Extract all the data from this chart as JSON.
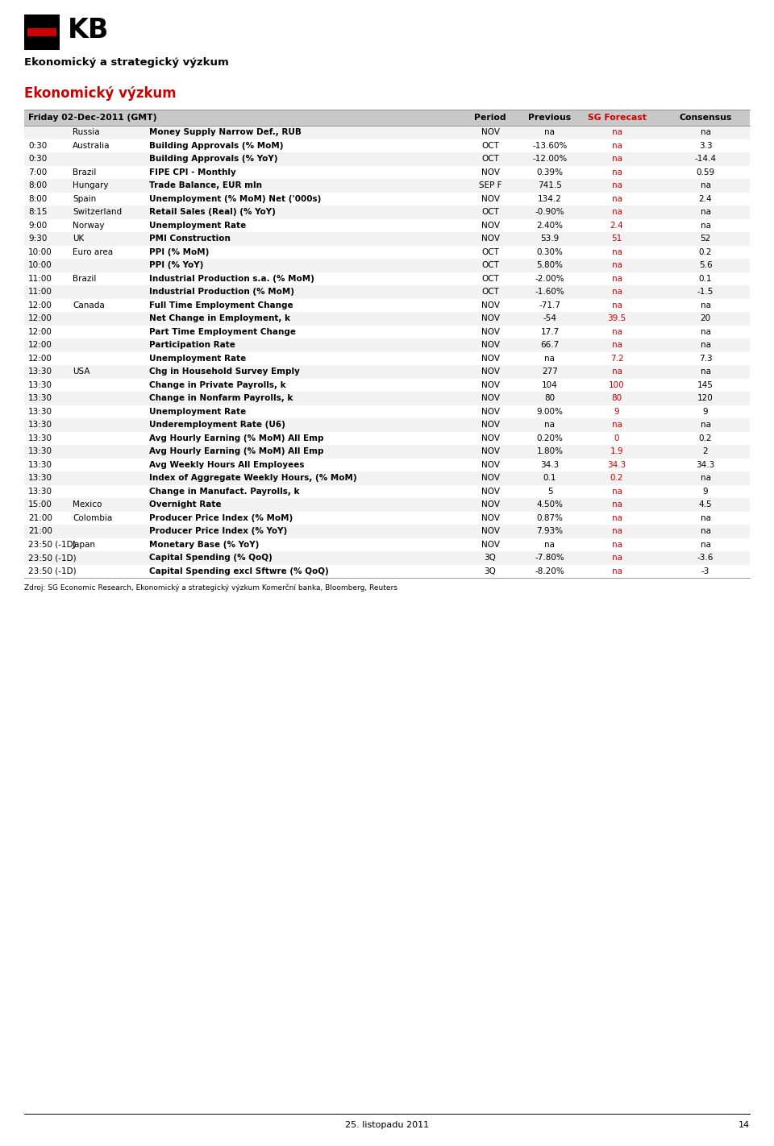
{
  "title1": "Ekonomický a strategický výzkum",
  "title2": "Ekonomický výzkum",
  "header": [
    "Friday 02-Dec-2011 (GMT)",
    "Period",
    "Previous",
    "SG Forecast",
    "Consensus"
  ],
  "footer": "Zdroj: SG Economic Research, Ekonomický a strategický výzkum Komerční banka, Bloomberg, Reuters",
  "rows": [
    [
      "",
      "Russia",
      "Money Supply Narrow Def., RUB",
      "NOV",
      "na",
      "na",
      "na"
    ],
    [
      "0:30",
      "Australia",
      "Building Approvals (% MoM)",
      "OCT",
      "-13.60%",
      "na",
      "3.3"
    ],
    [
      "0:30",
      "",
      "Building Approvals (% YoY)",
      "OCT",
      "-12.00%",
      "na",
      "-14.4"
    ],
    [
      "7:00",
      "Brazil",
      "FIPE CPI - Monthly",
      "NOV",
      "0.39%",
      "na",
      "0.59"
    ],
    [
      "8:00",
      "Hungary",
      "Trade Balance, EUR mln",
      "SEP F",
      "741.5",
      "na",
      "na"
    ],
    [
      "8:00",
      "Spain",
      "Unemployment (% MoM) Net ('000s)",
      "NOV",
      "134.2",
      "na",
      "2.4"
    ],
    [
      "8:15",
      "Switzerland",
      "Retail Sales (Real) (% YoY)",
      "OCT",
      "-0.90%",
      "na",
      "na"
    ],
    [
      "9:00",
      "Norway",
      "Unemployment Rate",
      "NOV",
      "2.40%",
      "2.4",
      "na"
    ],
    [
      "9:30",
      "UK",
      "PMI Construction",
      "NOV",
      "53.9",
      "51",
      "52"
    ],
    [
      "10:00",
      "Euro area",
      "PPI (% MoM)",
      "OCT",
      "0.30%",
      "na",
      "0.2"
    ],
    [
      "10:00",
      "",
      "PPI (% YoY)",
      "OCT",
      "5.80%",
      "na",
      "5.6"
    ],
    [
      "11:00",
      "Brazil",
      "Industrial Production s.a. (% MoM)",
      "OCT",
      "-2.00%",
      "na",
      "0.1"
    ],
    [
      "11:00",
      "",
      "Industrial Production (% MoM)",
      "OCT",
      "-1.60%",
      "na",
      "-1.5"
    ],
    [
      "12:00",
      "Canada",
      "Full Time Employment Change",
      "NOV",
      "-71.7",
      "na",
      "na"
    ],
    [
      "12:00",
      "",
      "Net Change in Employment, k",
      "NOV",
      "-54",
      "39.5",
      "20"
    ],
    [
      "12:00",
      "",
      "Part Time Employment Change",
      "NOV",
      "17.7",
      "na",
      "na"
    ],
    [
      "12:00",
      "",
      "Participation Rate",
      "NOV",
      "66.7",
      "na",
      "na"
    ],
    [
      "12:00",
      "",
      "Unemployment Rate",
      "NOV",
      "na",
      "7.2",
      "7.3"
    ],
    [
      "13:30",
      "USA",
      "Chg in Household Survey Emply",
      "NOV",
      "277",
      "na",
      "na"
    ],
    [
      "13:30",
      "",
      "Change in Private Payrolls, k",
      "NOV",
      "104",
      "100",
      "145"
    ],
    [
      "13:30",
      "",
      "Change in Nonfarm Payrolls, k",
      "NOV",
      "80",
      "80",
      "120"
    ],
    [
      "13:30",
      "",
      "Unemployment Rate",
      "NOV",
      "9.00%",
      "9",
      "9"
    ],
    [
      "13:30",
      "",
      "Underemployment Rate (U6)",
      "NOV",
      "na",
      "na",
      "na"
    ],
    [
      "13:30",
      "",
      "Avg Hourly Earning (% MoM) All Emp",
      "NOV",
      "0.20%",
      "0",
      "0.2"
    ],
    [
      "13:30",
      "",
      "Avg Hourly Earning (% MoM) All Emp",
      "NOV",
      "1.80%",
      "1.9",
      "2"
    ],
    [
      "13:30",
      "",
      "Avg Weekly Hours All Employees",
      "NOV",
      "34.3",
      "34.3",
      "34.3"
    ],
    [
      "13:30",
      "",
      "Index of Aggregate Weekly Hours, (% MoM)",
      "NOV",
      "0.1",
      "0.2",
      "na"
    ],
    [
      "13:30",
      "",
      "Change in Manufact. Payrolls, k",
      "NOV",
      "5",
      "na",
      "9"
    ],
    [
      "15:00",
      "Mexico",
      "Overnight Rate",
      "NOV",
      "4.50%",
      "na",
      "4.5"
    ],
    [
      "21:00",
      "Colombia",
      "Producer Price Index (% MoM)",
      "NOV",
      "0.87%",
      "na",
      "na"
    ],
    [
      "21:00",
      "",
      "Producer Price Index (% YoY)",
      "NOV",
      "7.93%",
      "na",
      "na"
    ],
    [
      "23:50 (-1D)",
      "Japan",
      "Monetary Base (% YoY)",
      "NOV",
      "na",
      "na",
      "na"
    ],
    [
      "23:50 (-1D)",
      "",
      "Capital Spending (% QoQ)",
      "3Q",
      "-7.80%",
      "na",
      "-3.6"
    ],
    [
      "23:50 (-1D)",
      "",
      "Capital Spending excl Sftwre (% QoQ)",
      "3Q",
      "-8.20%",
      "na",
      "-3"
    ]
  ],
  "header_bg": "#c8c8c8",
  "red_color": "#cc0000",
  "sg_header_color": "#cc0000",
  "page_num": "14",
  "page_date": "25. listopadu 2011"
}
